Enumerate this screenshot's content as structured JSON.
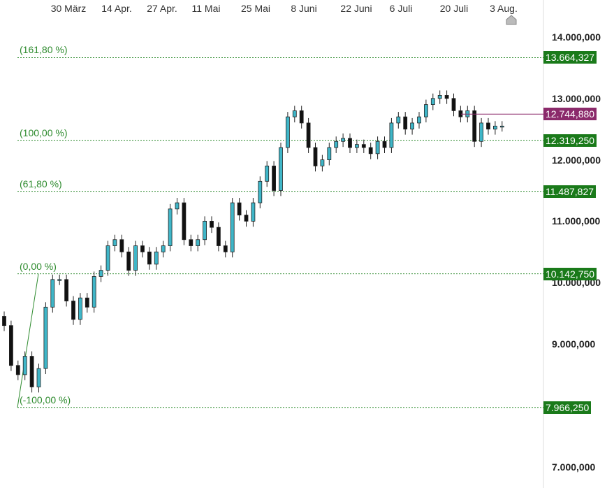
{
  "chart_data": {
    "type": "candlestick",
    "title": "",
    "x_tick_labels": [
      "30 März",
      "14 Apr.",
      "27 Apr.",
      "11 Mai",
      "25 Mai",
      "8 Juni",
      "22 Juni",
      "6 Juli",
      "20 Juli",
      "3 Aug."
    ],
    "y_tick_labels": [
      "14.000,000",
      "13.000,000",
      "12.000,000",
      "11.000,000",
      "10.000,000",
      "9.000,000",
      "7.000,000"
    ],
    "y_ticks": [
      14000000,
      13000000,
      12000000,
      11000000,
      10000000,
      9000000,
      7000000
    ],
    "ylim": [
      6800000,
      14450000
    ],
    "grid": false,
    "current_price": {
      "value": 12744880,
      "label": "12.744,880"
    },
    "fibonacci_levels": [
      {
        "pct_label": "(161,80 %)",
        "value": 13664327,
        "value_label": "13.664,327"
      },
      {
        "pct_label": "(100,00 %)",
        "value": 12319250,
        "value_label": "12.319,250"
      },
      {
        "pct_label": "(61,80 %)",
        "value": 11487827,
        "value_label": "11.487,827"
      },
      {
        "pct_label": "(0,00 %)",
        "value": 10142750,
        "value_label": "10.142,750"
      },
      {
        "pct_label": "(-100,00 %)",
        "value": 7966250,
        "value_label": "7.966,250"
      }
    ],
    "fib_anchor": {
      "start_value": 7966250,
      "end_value": 10142750
    },
    "candles_close": [
      9300000,
      8650000,
      8500000,
      8800000,
      8300000,
      8600000,
      9600000,
      10050000,
      10050000,
      9700000,
      9400000,
      9750000,
      9600000,
      10100000,
      10200000,
      10600000,
      10700000,
      10500000,
      10200000,
      10600000,
      10500000,
      10300000,
      10500000,
      10600000,
      11200000,
      11300000,
      10700000,
      10600000,
      10700000,
      11000000,
      10900000,
      10600000,
      10500000,
      11300000,
      11100000,
      11000000,
      11300000,
      11650000,
      11900000,
      11500000,
      12200000,
      12700000,
      12800000,
      12600000,
      12200000,
      11900000,
      12000000,
      12200000,
      12300000,
      12350000,
      12200000,
      12250000,
      12200000,
      12100000,
      12300000,
      12200000,
      12600000,
      12700000,
      12500000,
      12600000,
      12700000,
      12900000,
      13000000,
      13050000,
      13000000,
      12800000,
      12700000,
      12800000,
      12300000,
      12600000,
      12500000,
      12550000,
      12550000
    ]
  }
}
